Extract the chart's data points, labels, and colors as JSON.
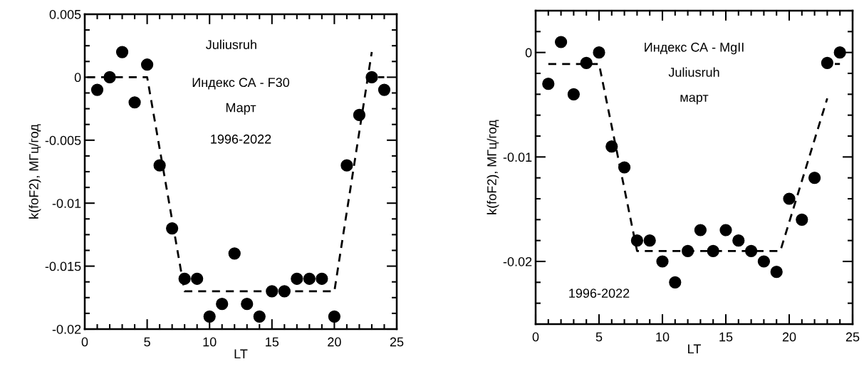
{
  "chart_data": [
    {
      "type": "scatter",
      "xlabel": "LT",
      "ylabel": "k(foF2), МГц/год",
      "x": [
        1,
        2,
        3,
        4,
        5,
        6,
        7,
        8,
        9,
        10,
        11,
        12,
        13,
        14,
        15,
        16,
        17,
        18,
        19,
        20,
        21,
        22,
        23,
        24
      ],
      "xlim": [
        0,
        25
      ],
      "xticks": [
        0,
        5,
        10,
        15,
        20,
        25
      ],
      "ylim": [
        -0.02,
        0.005
      ],
      "yticks": [
        -0.02,
        -0.015,
        -0.01,
        -0.005,
        0,
        0.005
      ],
      "grid": false,
      "legend": false,
      "annotations": [
        "Juliusruh",
        "Индекс СА - F30",
        "Март",
        "1996-2022"
      ],
      "series": [
        {
          "type": "scatter",
          "color": "#000000",
          "marker": "circle",
          "values": [
            -0.001,
            0,
            0.002,
            -0.002,
            0.001,
            -0.007,
            -0.012,
            -0.016,
            -0.016,
            -0.019,
            -0.018,
            -0.014,
            -0.018,
            -0.019,
            -0.017,
            -0.017,
            -0.016,
            -0.016,
            -0.016,
            -0.019,
            -0.007,
            -0.003,
            0,
            -0.001
          ]
        },
        {
          "type": "line",
          "color": "#000000",
          "marker": "none",
          "line_style": "dashed",
          "x": [
            0.2,
            5,
            8,
            20,
            23
          ],
          "values": [
            0,
            0,
            -0.017,
            -0.017,
            0.002
          ]
        },
        {
          "type": "line",
          "color": "#000000",
          "marker": "none",
          "line_style": "dashed",
          "x": [
            23.5,
            24
          ],
          "values": [
            0,
            0
          ]
        }
      ]
    },
    {
      "type": "scatter",
      "xlabel": "LT",
      "ylabel": "k(foF2), МГц/год",
      "x": [
        1,
        2,
        3,
        4,
        5,
        6,
        7,
        8,
        9,
        10,
        11,
        12,
        13,
        14,
        15,
        16,
        17,
        18,
        19,
        20,
        21,
        22,
        23,
        24
      ],
      "xlim": [
        0,
        25
      ],
      "xticks": [
        0,
        5,
        10,
        15,
        20,
        25
      ],
      "ylim": [
        -0.026,
        0.004
      ],
      "yticks": [
        -0.02,
        -0.01,
        0
      ],
      "grid": false,
      "legend": false,
      "annotations": [
        "Индекс СА - MgII",
        "Juliusruh",
        "март",
        "1996-2022"
      ],
      "series": [
        {
          "type": "scatter",
          "color": "#000000",
          "marker": "circle",
          "values": [
            -0.003,
            0.001,
            -0.004,
            -0.001,
            0,
            -0.009,
            -0.011,
            -0.018,
            -0.018,
            -0.02,
            -0.022,
            -0.019,
            -0.017,
            -0.019,
            -0.017,
            -0.018,
            -0.019,
            -0.02,
            -0.021,
            -0.014,
            -0.016,
            -0.012,
            -0.001,
            0
          ]
        },
        {
          "type": "line",
          "color": "#000000",
          "marker": "none",
          "line_style": "dashed",
          "x": [
            1,
            5,
            8,
            19.3,
            23
          ],
          "values": [
            -0.0011,
            -0.0011,
            -0.019,
            -0.019,
            -0.0044
          ]
        },
        {
          "type": "line",
          "color": "#000000",
          "marker": "none",
          "line_style": "dashed",
          "x": [
            23.6,
            24
          ],
          "values": [
            -0.0011,
            -0.0011
          ]
        }
      ]
    }
  ]
}
